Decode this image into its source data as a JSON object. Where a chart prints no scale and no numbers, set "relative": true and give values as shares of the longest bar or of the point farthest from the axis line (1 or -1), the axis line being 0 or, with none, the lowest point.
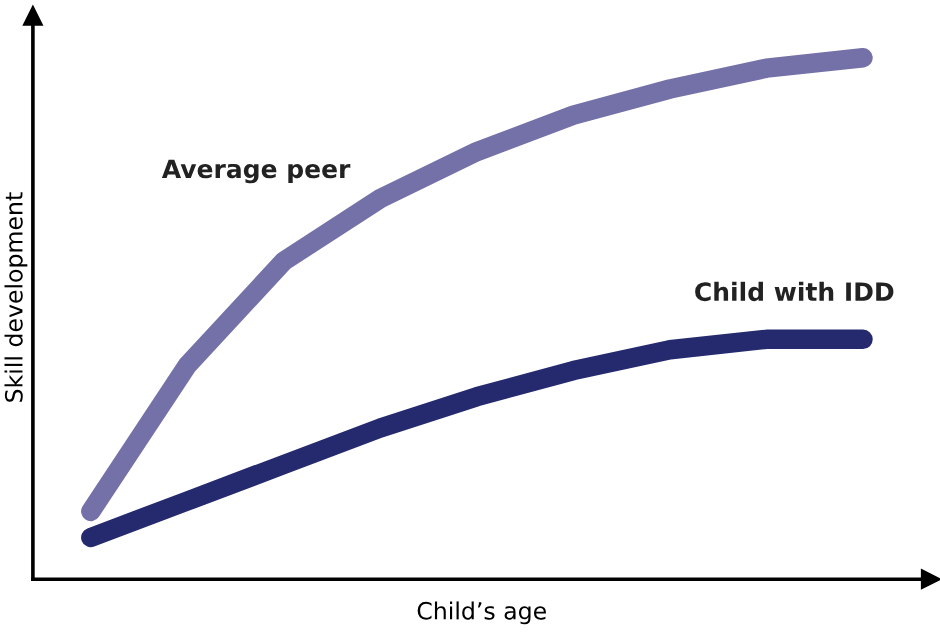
{
  "chart_data": {
    "type": "line",
    "relative": true,
    "xlabel": "Child’s age",
    "ylabel": "Skill development",
    "categories": [
      null,
      null,
      null,
      null,
      null,
      null,
      null,
      null,
      null
    ],
    "series": [
      {
        "name": "Average peer",
        "color": "#7470a8",
        "values": [
          0.13,
          0.41,
          0.61,
          0.73,
          0.82,
          0.89,
          0.94,
          0.98,
          1
        ]
      },
      {
        "name": "Child with IDD",
        "color": "#252a6e",
        "values": [
          0.08,
          0.15,
          0.22,
          0.29,
          0.35,
          0.4,
          0.44,
          0.46,
          0.46
        ]
      }
    ],
    "legend": false,
    "marker": "none",
    "line_style": "solid"
  }
}
